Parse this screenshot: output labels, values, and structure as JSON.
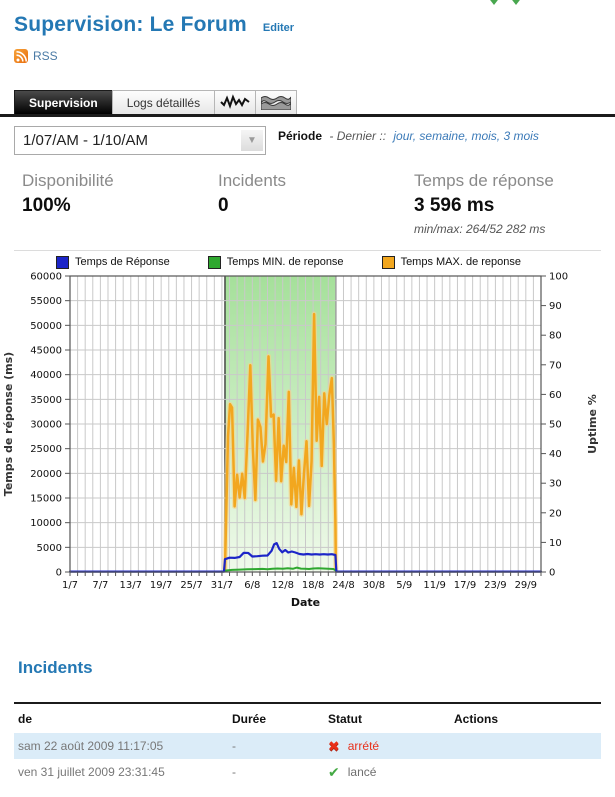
{
  "page": {
    "title": "Supervision: Le Forum",
    "edit_link": "Editer",
    "rss_label": "RSS"
  },
  "tabs": [
    {
      "label": "Supervision",
      "active": true
    },
    {
      "label": "Logs détaillés",
      "active": false
    },
    {
      "icon": "line-chart",
      "active": false
    },
    {
      "icon": "area-chart",
      "active": false
    }
  ],
  "period": {
    "selected": "1/07/AM - 1/10/AM",
    "label": "Période",
    "prefix": "- Dernier ::",
    "links": [
      "jour",
      "semaine",
      "mois",
      "3 mois"
    ]
  },
  "stats": [
    {
      "label": "Disponibilité",
      "value": "100%"
    },
    {
      "label": "Incidents",
      "value": "0"
    },
    {
      "label": "Temps de réponse",
      "value": "3 596 ms",
      "sub": "min/max: 264/52 282 ms"
    }
  ],
  "chart_data": {
    "type": "line",
    "xlabel": "Date",
    "ylabel_left": "Temps de réponse (ms)",
    "ylabel_right": "Uptime %",
    "ylim_left": [
      0,
      60000
    ],
    "ylim_right": [
      0,
      100
    ],
    "x_range_days": [
      0,
      93
    ],
    "minor_step_days": 1.5,
    "grid": true,
    "x_ticks": [
      {
        "day": 0,
        "label": "1/7"
      },
      {
        "day": 6,
        "label": "7/7"
      },
      {
        "day": 12,
        "label": "13/7"
      },
      {
        "day": 18,
        "label": "19/7"
      },
      {
        "day": 24,
        "label": "25/7"
      },
      {
        "day": 30,
        "label": "31/7"
      },
      {
        "day": 36,
        "label": "6/8"
      },
      {
        "day": 42,
        "label": "12/8"
      },
      {
        "day": 48,
        "label": "18/8"
      },
      {
        "day": 54,
        "label": "24/8"
      },
      {
        "day": 60,
        "label": "30/8"
      },
      {
        "day": 66,
        "label": "5/9"
      },
      {
        "day": 72,
        "label": "11/9"
      },
      {
        "day": 78,
        "label": "17/9"
      },
      {
        "day": 84,
        "label": "23/9"
      },
      {
        "day": 90,
        "label": "29/9"
      }
    ],
    "legend": [
      {
        "label": "Temps de Réponse",
        "color": "#1c25c8"
      },
      {
        "label": "Temps MIN. de reponse",
        "color": "#2fa82f"
      },
      {
        "label": "Temps MAX. de reponse",
        "color": "#f2a71f"
      }
    ],
    "uptime_band": {
      "start_day": 30.6,
      "end_day": 52.5,
      "value": 100,
      "fill_top": "#a5e09a",
      "fill_bottom": "#f0faeb",
      "edge_color": "#3a3a3a"
    },
    "series": [
      {
        "name": "Temps MAX. de reponse",
        "color": "#f2a71f",
        "halo": "#f8d489",
        "width": 2.5,
        "axis": "left",
        "points": [
          [
            30.6,
            500
          ],
          [
            31.2,
            27500
          ],
          [
            31.6,
            34000
          ],
          [
            32.0,
            33300
          ],
          [
            32.5,
            13300
          ],
          [
            33.0,
            19700
          ],
          [
            33.5,
            15100
          ],
          [
            34.0,
            19900
          ],
          [
            34.5,
            15000
          ],
          [
            35.1,
            29000
          ],
          [
            35.6,
            41900
          ],
          [
            36.1,
            25100
          ],
          [
            36.6,
            14600
          ],
          [
            37.1,
            30900
          ],
          [
            37.6,
            29400
          ],
          [
            38.1,
            22400
          ],
          [
            38.6,
            25900
          ],
          [
            39.2,
            43700
          ],
          [
            39.7,
            31500
          ],
          [
            40.2,
            31900
          ],
          [
            40.7,
            18500
          ],
          [
            41.2,
            31200
          ],
          [
            41.7,
            18400
          ],
          [
            42.2,
            25600
          ],
          [
            42.7,
            22300
          ],
          [
            43.2,
            36500
          ],
          [
            43.7,
            13700
          ],
          [
            44.2,
            21100
          ],
          [
            44.7,
            13200
          ],
          [
            45.2,
            22600
          ],
          [
            45.7,
            11700
          ],
          [
            46.2,
            20000
          ],
          [
            46.7,
            26500
          ],
          [
            47.2,
            13400
          ],
          [
            47.7,
            22500
          ],
          [
            48.2,
            52280
          ],
          [
            48.7,
            26600
          ],
          [
            49.2,
            35500
          ],
          [
            49.7,
            21500
          ],
          [
            50.2,
            36200
          ],
          [
            50.7,
            30000
          ],
          [
            51.2,
            35800
          ],
          [
            51.7,
            39300
          ],
          [
            52.1,
            26000
          ],
          [
            52.4,
            10500
          ],
          [
            52.5,
            300
          ]
        ]
      },
      {
        "name": "Temps MIN. de reponse",
        "color": "#2fa82f",
        "width": 2,
        "axis": "left",
        "points": [
          [
            30.6,
            280
          ],
          [
            32,
            420
          ],
          [
            33.5,
            480
          ],
          [
            35,
            540
          ],
          [
            36.5,
            580
          ],
          [
            38,
            620
          ],
          [
            39,
            560
          ],
          [
            40,
            640
          ],
          [
            41,
            710
          ],
          [
            42,
            660
          ],
          [
            43,
            740
          ],
          [
            44,
            650
          ],
          [
            44.8,
            900
          ],
          [
            45.6,
            690
          ],
          [
            46.4,
            640
          ],
          [
            47.2,
            610
          ],
          [
            48,
            710
          ],
          [
            49,
            770
          ],
          [
            50,
            710
          ],
          [
            51,
            650
          ],
          [
            52,
            610
          ],
          [
            52.5,
            300
          ]
        ]
      },
      {
        "name": "Temps de Réponse",
        "color": "#1c25c8",
        "width": 2.2,
        "axis": "left",
        "points": [
          [
            0,
            80
          ],
          [
            30.4,
            80
          ],
          [
            30.6,
            2600
          ],
          [
            31.5,
            2900
          ],
          [
            32.5,
            2850
          ],
          [
            33.5,
            3050
          ],
          [
            34.3,
            3900
          ],
          [
            35.2,
            3850
          ],
          [
            36.0,
            3150
          ],
          [
            37.0,
            3200
          ],
          [
            38.0,
            3300
          ],
          [
            39.0,
            3350
          ],
          [
            39.8,
            4300
          ],
          [
            40.3,
            5600
          ],
          [
            40.8,
            5850
          ],
          [
            41.3,
            4700
          ],
          [
            41.9,
            4000
          ],
          [
            42.5,
            4450
          ],
          [
            43.1,
            3950
          ],
          [
            43.8,
            4150
          ],
          [
            44.5,
            3950
          ],
          [
            45.3,
            3650
          ],
          [
            46.1,
            3550
          ],
          [
            46.9,
            3650
          ],
          [
            47.7,
            3550
          ],
          [
            48.5,
            3600
          ],
          [
            49.3,
            3550
          ],
          [
            50.1,
            3600
          ],
          [
            50.9,
            3550
          ],
          [
            51.7,
            3600
          ],
          [
            52.4,
            3450
          ],
          [
            52.6,
            80
          ],
          [
            93,
            80
          ]
        ]
      }
    ]
  },
  "incidents": {
    "heading": "Incidents",
    "columns": [
      "de",
      "Durée",
      "Statut",
      "Actions"
    ],
    "rows": [
      {
        "de": "sam 22 août 2009 11:17:05",
        "duree": "-",
        "statut": "arrété",
        "statut_color": "#e8301a",
        "icon": "red-x-icon",
        "icon_glyph": "✖",
        "highlight": true
      },
      {
        "de": "ven 31 juillet 2009 23:31:45",
        "duree": "-",
        "statut": "lancé",
        "statut_color": "#6f6f6f",
        "icon": "green-check-icon",
        "icon_glyph": "✔",
        "highlight": false
      }
    ]
  }
}
